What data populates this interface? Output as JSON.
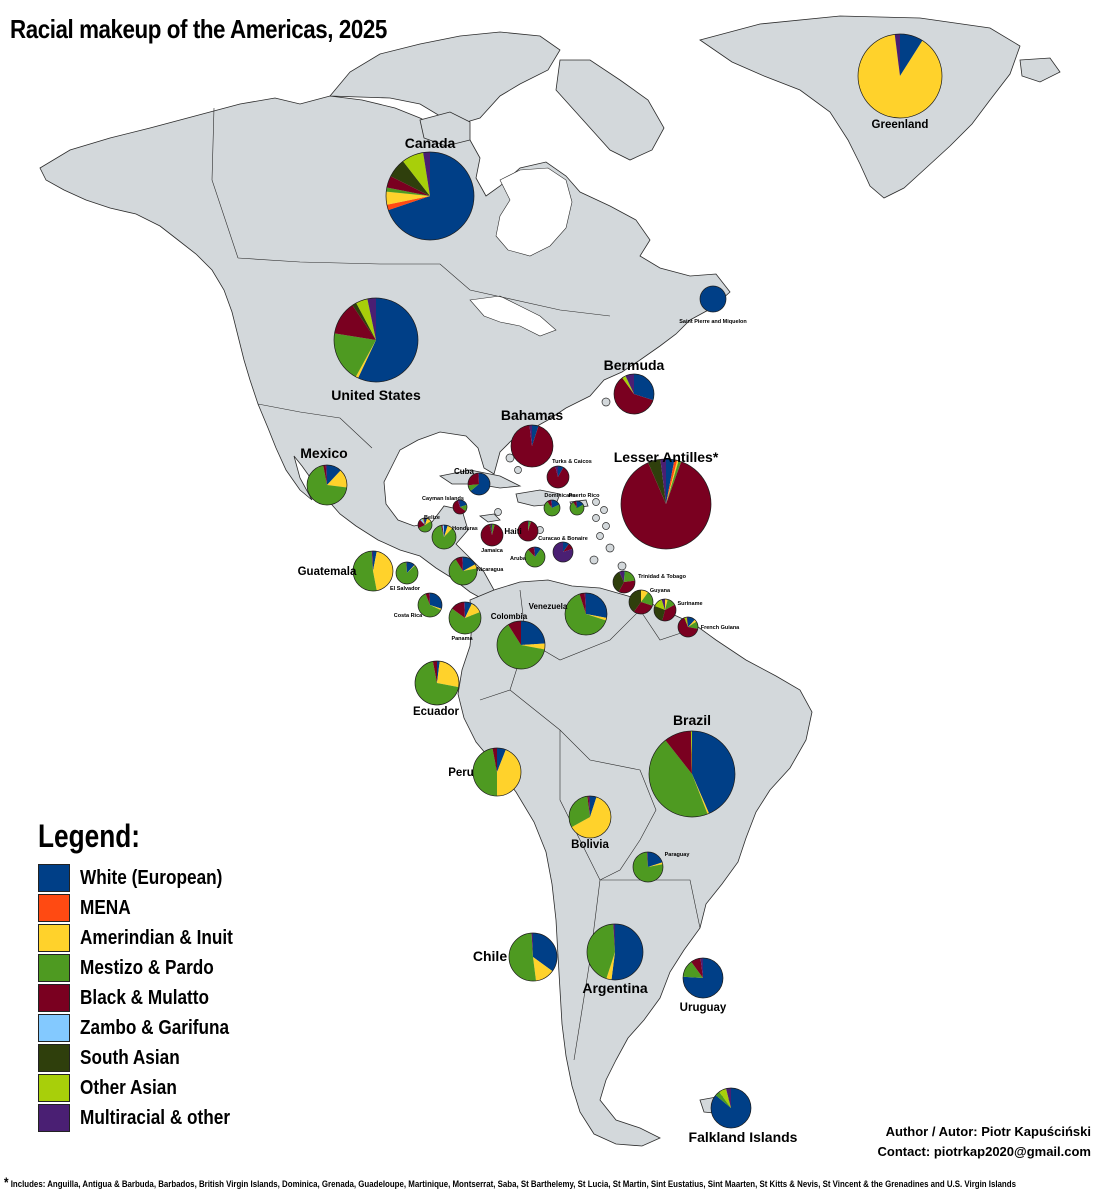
{
  "title": "Racial makeup of the Americas, 2025",
  "categories": [
    {
      "key": "white",
      "label": "White (European)",
      "color": "#003f87"
    },
    {
      "key": "mena",
      "label": "MENA",
      "color": "#ff4a12"
    },
    {
      "key": "amerindian",
      "label": "Amerindian & Inuit",
      "color": "#ffd22b"
    },
    {
      "key": "mestizo",
      "label": "Mestizo & Pardo",
      "color": "#4e9a21"
    },
    {
      "key": "black",
      "label": "Black & Mulatto",
      "color": "#7a0020"
    },
    {
      "key": "zambo",
      "label": "Zambo & Garifuna",
      "color": "#83c9ff"
    },
    {
      "key": "south_asian",
      "label": "South Asian",
      "color": "#2f3f0c"
    },
    {
      "key": "other_asian",
      "label": "Other Asian",
      "color": "#a8cf0a"
    },
    {
      "key": "multiracial",
      "label": "Multiracial & other",
      "color": "#4a1f73"
    }
  ],
  "legend": {
    "title": "Legend:"
  },
  "credit": {
    "author": "Author / Autor: Piotr Kapuściński",
    "contact": "Contact: piotrkap2020@gmail.com"
  },
  "footnote": {
    "star": "*",
    "text": "Includes: Anguilla, Antigua & Barbuda, Barbados, British Virgin Islands, Dominica, Grenada, Guadeloupe, Martinique, Montserrat, Saba, St Barthelemy, St Lucia, St Martin, Sint Eustatius, Sint Maarten, St Kitts & Nevis, St Vincent & the Grenadines and U.S. Virgin Islands"
  },
  "regions": [
    {
      "name": "Canada",
      "label_size": "large",
      "shares": {
        "white": 69.8,
        "mena": 2.0,
        "amerindian": 4.8,
        "mestizo": 1.5,
        "black": 4.3,
        "south_asian": 7.1,
        "other_asian": 8.0,
        "multiracial": 2.5
      }
    },
    {
      "name": "Greenland",
      "label_size": "medium",
      "shares": {
        "white": 9.0,
        "amerindian": 89.0,
        "multiracial": 2.0
      }
    },
    {
      "name": "United States",
      "label_size": "large",
      "shares": {
        "white": 57.0,
        "amerindian": 1.0,
        "mestizo": 19.5,
        "black": 13.0,
        "south_asian": 1.7,
        "other_asian": 4.5,
        "multiracial": 3.3
      }
    },
    {
      "name": "Saint Pierre and Miquelon",
      "label_size": "tiny",
      "shares": {
        "white": 100.0
      }
    },
    {
      "name": "Bermuda",
      "label_size": "large",
      "shares": {
        "white": 30.0,
        "black": 60.0,
        "other_asian": 3.0,
        "multiracial": 7.0
      }
    },
    {
      "name": "Bahamas",
      "label_size": "large",
      "shares": {
        "white": 5.0,
        "black": 93.0,
        "multiracial": 2.0
      }
    },
    {
      "name": "Mexico",
      "label_size": "large",
      "shares": {
        "white": 12.0,
        "amerindian": 15.0,
        "mestizo": 70.0,
        "black": 2.0,
        "multiracial": 1.0
      }
    },
    {
      "name": "Lesser Antilles*",
      "label_size": "large",
      "shares": {
        "white": 3.0,
        "mena": 1.0,
        "amerindian": 0.5,
        "mestizo": 1.0,
        "black": 88.0,
        "south_asian": 4.5,
        "multiracial": 2.0
      }
    },
    {
      "name": "Cuba",
      "label_size": "small",
      "shares": {
        "white": 64.0,
        "black": 26.0,
        "mestizo": 9.0,
        "multiracial": 1.0
      }
    },
    {
      "name": "Turks & Caicos",
      "label_size": "tiny",
      "shares": {
        "white": 8.0,
        "black": 88.0,
        "multiracial": 4.0
      }
    },
    {
      "name": "Cayman Islands",
      "label_size": "tiny",
      "shares": {
        "white": 20.0,
        "black": 60.0,
        "mestizo": 15.0,
        "multiracial": 5.0
      }
    },
    {
      "name": "Dominicana",
      "label_size": "tiny",
      "shares": {
        "white": 18.0,
        "black": 8.0,
        "mestizo": 72.0,
        "multiracial": 2.0
      }
    },
    {
      "name": "Puerto Rico",
      "label_size": "tiny",
      "shares": {
        "white": 17.0,
        "black": 7.0,
        "mestizo": 74.0,
        "multiracial": 2.0
      }
    },
    {
      "name": "Belize",
      "label_size": "tiny",
      "shares": {
        "white": 5.0,
        "amerindian": 11.0,
        "mestizo": 52.0,
        "black": 20.0,
        "zambo": 5.0,
        "other_asian": 3.0,
        "multiracial": 4.0
      }
    },
    {
      "name": "Honduras",
      "label_size": "tiny",
      "shares": {
        "white": 5.0,
        "amerindian": 7.0,
        "mestizo": 84.0,
        "black": 2.0,
        "zambo": 2.0
      }
    },
    {
      "name": "Haiti",
      "label_size": "small",
      "shares": {
        "black": 95.0,
        "mestizo": 4.0,
        "white": 1.0
      }
    },
    {
      "name": "Jamaica",
      "label_size": "tiny",
      "shares": {
        "black": 92.0,
        "mestizo": 4.0,
        "south_asian": 2.0,
        "multiracial": 2.0
      }
    },
    {
      "name": "Curacao & Bonaire",
      "label_size": "tiny",
      "shares": {
        "white": 10.0,
        "black": 10.0,
        "multiracial": 80.0
      }
    },
    {
      "name": "Aruba",
      "label_size": "tiny",
      "shares": {
        "white": 10.0,
        "black": 10.0,
        "mestizo": 78.0,
        "multiracial": 2.0
      }
    },
    {
      "name": "Guatemala",
      "label_size": "medium",
      "shares": {
        "white": 3.0,
        "amerindian": 44.0,
        "mestizo": 52.0,
        "multiracial": 1.0
      }
    },
    {
      "name": "El Salvador",
      "label_size": "tiny",
      "shares": {
        "white": 12.0,
        "amerindian": 1.0,
        "mestizo": 86.0,
        "multiracial": 1.0
      }
    },
    {
      "name": "Nicaragua",
      "label_size": "tiny",
      "shares": {
        "white": 17.0,
        "amerindian": 5.0,
        "mestizo": 69.0,
        "black": 8.0,
        "multiracial": 1.0
      }
    },
    {
      "name": "Trinidad & Tobago",
      "label_size": "tiny",
      "shares": {
        "black": 35.0,
        "south_asian": 35.0,
        "mestizo": 22.0,
        "white": 1.0,
        "multiracial": 7.0
      }
    },
    {
      "name": "Costa Rica",
      "label_size": "tiny",
      "shares": {
        "white": 30.0,
        "amerindian": 2.0,
        "mestizo": 62.0,
        "black": 5.0,
        "multiracial": 1.0
      }
    },
    {
      "name": "Panama",
      "label_size": "tiny",
      "shares": {
        "white": 7.0,
        "amerindian": 12.0,
        "mestizo": 66.0,
        "black": 14.0,
        "multiracial": 1.0
      }
    },
    {
      "name": "Venezuela",
      "label_size": "small",
      "shares": {
        "white": 28.0,
        "amerindian": 2.0,
        "mestizo": 65.0,
        "black": 4.0,
        "multiracial": 1.0
      }
    },
    {
      "name": "Guyana",
      "label_size": "tiny",
      "shares": {
        "south_asian": 40.0,
        "black": 30.0,
        "mestizo": 20.0,
        "amerindian": 10.0
      }
    },
    {
      "name": "Suriname",
      "label_size": "tiny",
      "shares": {
        "south_asian": 27.0,
        "black": 37.0,
        "mestizo": 13.0,
        "amerindian": 4.0,
        "other_asian": 14.0,
        "multiracial": 5.0
      }
    },
    {
      "name": "French Guiana",
      "label_size": "tiny",
      "shares": {
        "white": 12.0,
        "black": 66.0,
        "mestizo": 12.0,
        "amerindian": 4.0,
        "other_asian": 4.0,
        "multiracial": 2.0
      }
    },
    {
      "name": "Colombia",
      "label_size": "small",
      "shares": {
        "white": 24.0,
        "amerindian": 4.0,
        "mestizo": 63.0,
        "black": 9.0
      }
    },
    {
      "name": "Ecuador",
      "label_size": "medium",
      "shares": {
        "white": 2.0,
        "amerindian": 26.0,
        "mestizo": 69.0,
        "black": 3.0
      }
    },
    {
      "name": "Brazil",
      "label_size": "large",
      "shares": {
        "white": 43.5,
        "amerindian": 0.6,
        "mestizo": 45.3,
        "black": 10.2,
        "other_asian": 0.4
      }
    },
    {
      "name": "Peru",
      "label_size": "medium",
      "shares": {
        "white": 6.0,
        "amerindian": 44.0,
        "mestizo": 47.0,
        "black": 3.0
      }
    },
    {
      "name": "Bolivia",
      "label_size": "medium",
      "shares": {
        "white": 5.0,
        "amerindian": 62.0,
        "mestizo": 31.0,
        "black": 1.0,
        "multiracial": 1.0
      }
    },
    {
      "name": "Paraguay",
      "label_size": "tiny",
      "shares": {
        "white": 20.0,
        "amerindian": 2.0,
        "mestizo": 77.0,
        "multiracial": 1.0
      }
    },
    {
      "name": "Chile",
      "label_size": "large",
      "shares": {
        "white": 35.0,
        "amerindian": 13.0,
        "mestizo": 51.0,
        "multiracial": 1.0
      }
    },
    {
      "name": "Argentina",
      "label_size": "large",
      "shares": {
        "white": 52.0,
        "amerindian": 3.0,
        "mestizo": 44.0,
        "multiracial": 1.0
      }
    },
    {
      "name": "Uruguay",
      "label_size": "medium",
      "shares": {
        "white": 76.0,
        "mestizo": 14.0,
        "black": 8.0,
        "multiracial": 2.0
      }
    },
    {
      "name": "Falkland Islands",
      "label_size": "large",
      "shares": {
        "white": 86.0,
        "mestizo": 4.0,
        "other_asian": 6.0,
        "multiracial": 4.0
      }
    }
  ]
}
